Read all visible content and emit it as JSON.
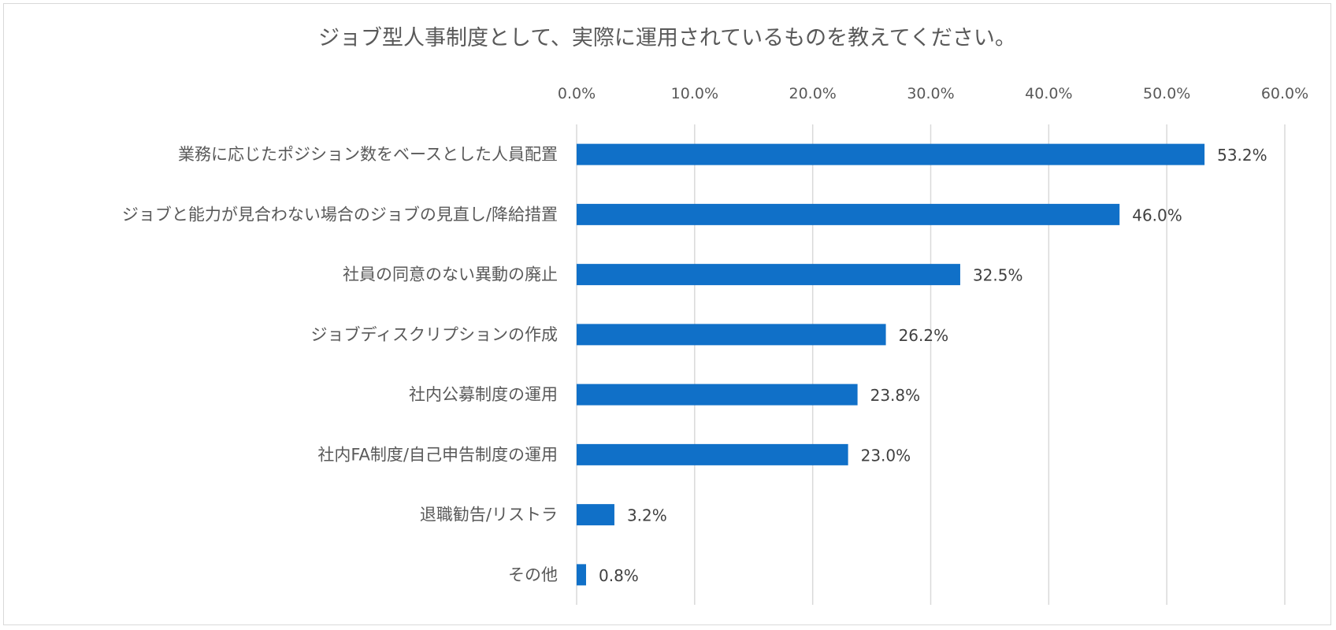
{
  "chart_data": {
    "type": "bar",
    "orientation": "horizontal",
    "title": "ジョブ型人事制度として、実際に運用されているものを教えてください。",
    "xlabel": "",
    "ylabel": "",
    "xlim": [
      0,
      60
    ],
    "x_ticks": [
      "0.0%",
      "10.0%",
      "20.0%",
      "30.0%",
      "40.0%",
      "50.0%",
      "60.0%"
    ],
    "x_axis_position": "top",
    "grid": true,
    "legend": "none",
    "bar_color": "#1070c8",
    "categories": [
      "業務に応じたポジション数をベースとした人員配置",
      "ジョブと能力が見合わない場合のジョブの見直し/降給措置",
      "社員の同意のない異動の廃止",
      "ジョブディスクリプションの作成",
      "社内公募制度の運用",
      "社内FA制度/自己申告制度の運用",
      "退職勧告/リストラ",
      "その他"
    ],
    "values": [
      53.2,
      46.0,
      32.5,
      26.2,
      23.8,
      23.0,
      3.2,
      0.8
    ],
    "data_labels": [
      "53.2%",
      "46.0%",
      "32.5%",
      "26.2%",
      "23.8%",
      "23.0%",
      "3.2%",
      "0.8%"
    ]
  }
}
